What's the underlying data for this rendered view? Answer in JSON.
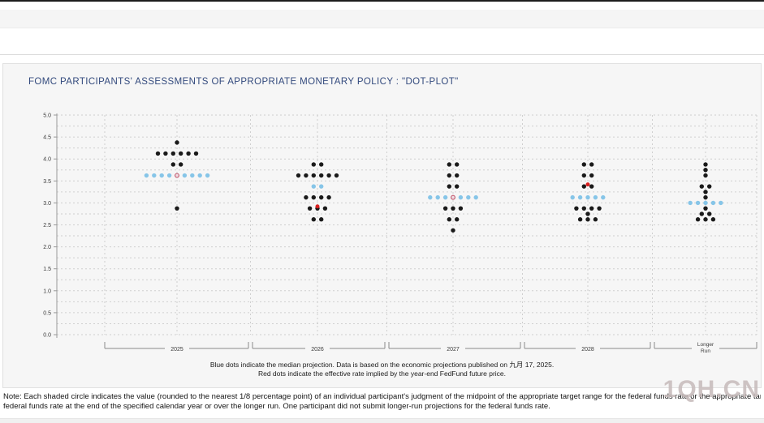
{
  "title": "FOMC PARTICIPANTS' ASSESSMENTS OF APPROPRIATE MONETARY POLICY : \"DOT-PLOT\"",
  "legend": {
    "line1": "Blue dots indicate the median projection. Data is based on the economic projections published on 九月 17, 2025.",
    "line2": "Red dots indicate the effective rate implied by the year-end FedFund future price."
  },
  "note": {
    "line1": "Note: Each shaded circle indicates the value (rounded to the nearest 1/8 percentage point) of an individual participant's judgment of the midpoint of the appropriate target range for the federal funds rate or the appropriate target level for the",
    "line2": "federal funds rate at the end of the specified calendar year or over the longer run. One participant did not submit longer-run projections for the federal funds rate."
  },
  "watermark": "1QH.CN",
  "colors": {
    "dot_black": "#1a1a1a",
    "dot_median_blue": "#86c5e8",
    "dot_red": "#d81f1f",
    "red_ring_stroke": "#c2556b",
    "red_ring_fill": "#eedfe4",
    "grid": "#cfcfcf",
    "axis": "#9a9a9a",
    "bracket": "#8a8a8a",
    "tick_label": "#3a3a3a",
    "panel_bg": "#f6f6f6",
    "title_navy": "#334a7d"
  },
  "chart_data": {
    "type": "scatter",
    "subtype": "fomc-dot-plot",
    "title": "FOMC PARTICIPANTS' ASSESSMENTS OF APPROPRIATE MONETARY POLICY : \"DOT-PLOT\"",
    "ylabel": "",
    "ylim": [
      0.0,
      5.0
    ],
    "ytick_step": 0.5,
    "grid_step": 0.25,
    "grid": true,
    "categories": [
      "2025",
      "2026",
      "2027",
      "2028",
      "Longer Run"
    ],
    "columns": [
      {
        "label": "2025",
        "median": 3.625,
        "dots": [
          {
            "rate": 4.375,
            "count": 1
          },
          {
            "rate": 4.125,
            "count": 6
          },
          {
            "rate": 3.875,
            "count": 2
          },
          {
            "rate": 3.625,
            "count": 9,
            "median": true
          },
          {
            "rate": 2.875,
            "count": 1
          }
        ]
      },
      {
        "label": "2026",
        "median": 3.375,
        "dots": [
          {
            "rate": 3.875,
            "count": 2
          },
          {
            "rate": 3.625,
            "count": 6
          },
          {
            "rate": 3.375,
            "count": 2,
            "median": true
          },
          {
            "rate": 3.125,
            "count": 4
          },
          {
            "rate": 2.875,
            "count": 3
          },
          {
            "rate": 2.625,
            "count": 2
          }
        ]
      },
      {
        "label": "2027",
        "median": 3.125,
        "dots": [
          {
            "rate": 3.875,
            "count": 2
          },
          {
            "rate": 3.625,
            "count": 2
          },
          {
            "rate": 3.375,
            "count": 2
          },
          {
            "rate": 3.125,
            "count": 7,
            "median": true
          },
          {
            "rate": 2.875,
            "count": 3
          },
          {
            "rate": 2.625,
            "count": 2
          },
          {
            "rate": 2.375,
            "count": 1
          }
        ]
      },
      {
        "label": "2028",
        "median": 3.125,
        "dots": [
          {
            "rate": 3.875,
            "count": 2
          },
          {
            "rate": 3.625,
            "count": 2
          },
          {
            "rate": 3.375,
            "count": 2
          },
          {
            "rate": 3.125,
            "count": 5,
            "median": true
          },
          {
            "rate": 2.875,
            "count": 4
          },
          {
            "rate": 2.75,
            "count": 1
          },
          {
            "rate": 2.625,
            "count": 3
          }
        ]
      },
      {
        "label": "Longer Run",
        "median": 3.0,
        "dots": [
          {
            "rate": 3.875,
            "count": 1
          },
          {
            "rate": 3.75,
            "count": 1
          },
          {
            "rate": 3.625,
            "count": 1
          },
          {
            "rate": 3.375,
            "count": 2
          },
          {
            "rate": 3.25,
            "count": 1
          },
          {
            "rate": 3.125,
            "count": 1
          },
          {
            "rate": 3.0,
            "count": 5,
            "median": true
          },
          {
            "rate": 2.875,
            "count": 1
          },
          {
            "rate": 2.75,
            "count": 2
          },
          {
            "rate": 2.625,
            "count": 3
          }
        ]
      }
    ],
    "red_dots": [
      {
        "year": "2025",
        "rate": 3.625,
        "style": "ring"
      },
      {
        "year": "2026",
        "rate": 2.92,
        "style": "solid"
      },
      {
        "year": "2027",
        "rate": 3.125,
        "style": "ring"
      },
      {
        "year": "2028",
        "rate": 3.42,
        "style": "solid"
      }
    ],
    "legend_position": "bottom-center"
  }
}
